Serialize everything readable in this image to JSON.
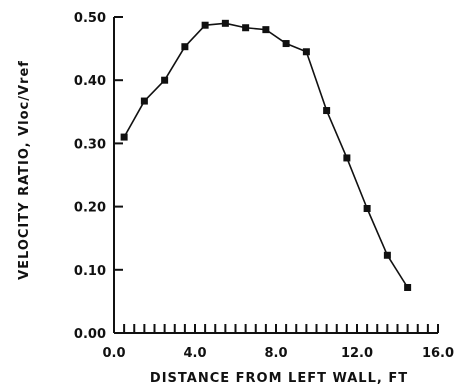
{
  "chart_data": {
    "type": "line",
    "title": "",
    "xlabel": "DISTANCE FROM LEFT WALL, FT",
    "ylabel": "VELOCITY RATIO, Vloc/Vref",
    "xlim": [
      0,
      16
    ],
    "ylim": [
      0,
      0.5
    ],
    "x_ticks": [
      0,
      4,
      8,
      12,
      16
    ],
    "x_tick_labels": [
      "0.0",
      "4.0",
      "8.0",
      "12.0",
      "16.0"
    ],
    "x_minor_step": 0.5,
    "y_ticks": [
      0,
      0.1,
      0.2,
      0.3,
      0.4,
      0.5
    ],
    "y_tick_labels": [
      "0.00",
      "0.10",
      "0.20",
      "0.30",
      "0.40",
      "0.50"
    ],
    "grid": false,
    "series": [
      {
        "x": [
          0.5,
          1.5,
          2.5,
          3.5,
          4.5,
          5.5,
          6.5,
          7.5,
          8.5,
          9.5,
          10.5,
          11.5,
          12.5,
          13.5,
          14.5
        ],
        "y": [
          0.31,
          0.367,
          0.4,
          0.453,
          0.487,
          0.49,
          0.483,
          0.48,
          0.458,
          0.445,
          0.352,
          0.277,
          0.197,
          0.123,
          0.072
        ]
      }
    ]
  }
}
